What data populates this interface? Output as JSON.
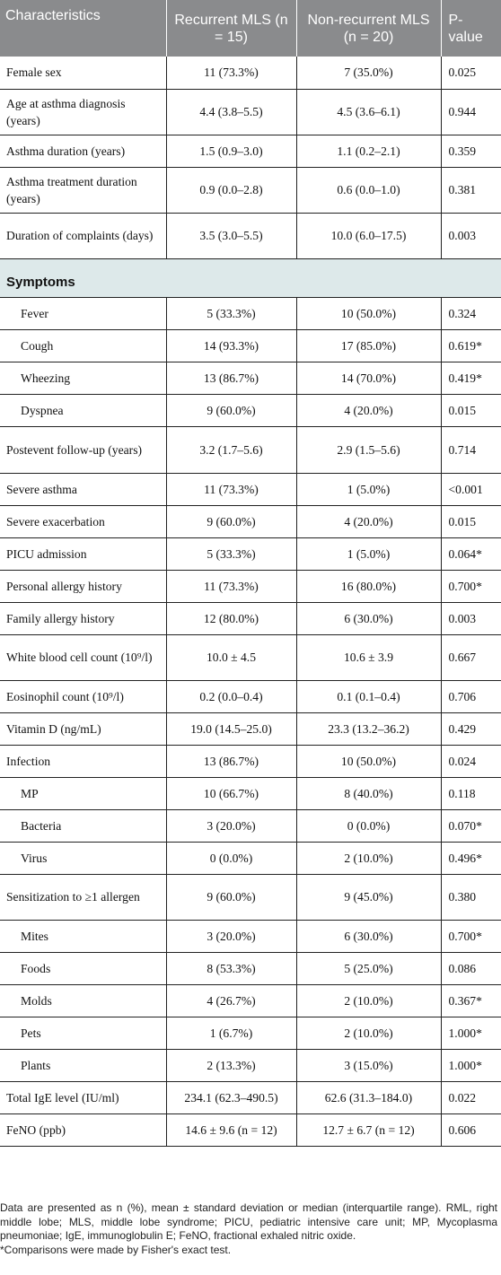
{
  "header": {
    "characteristics": "Characteristics",
    "recurrent": "Recurrent MLS (n = 15)",
    "nonrecurrent": "Non-recurrent MLS (n = 20)",
    "pvalue": "P-value"
  },
  "rows": [
    {
      "label": "Female sex",
      "recurrent": "11 (73.3%)",
      "nonrecurrent": "7 (35.0%)",
      "p": "0.025"
    },
    {
      "label": "Age at asthma diagnosis (years)",
      "recurrent": "4.4 (3.8–5.5)",
      "nonrecurrent": "4.5 (3.6–6.1)",
      "p": "0.944"
    },
    {
      "label": "Asthma duration (years)",
      "recurrent": "1.5 (0.9–3.0)",
      "nonrecurrent": "1.1 (0.2–2.1)",
      "p": "0.359"
    },
    {
      "label": "Asthma treatment duration (years)",
      "recurrent": "0.9 (0.0–2.8)",
      "nonrecurrent": "0.6 (0.0–1.0)",
      "p": "0.381"
    },
    {
      "label": "Duration of complaints (days)",
      "recurrent": "3.5 (3.0–5.5)",
      "nonrecurrent": "10.0 (6.0–17.5)",
      "p": "0.003"
    },
    {
      "label": "Symptoms"
    },
    {
      "label": "Fever",
      "recurrent": "5 (33.3%)",
      "nonrecurrent": "10 (50.0%)",
      "p": "0.324"
    },
    {
      "label": "Cough",
      "recurrent": "14 (93.3%)",
      "nonrecurrent": "17 (85.0%)",
      "p": "0.619*"
    },
    {
      "label": "Wheezing",
      "recurrent": "13 (86.7%)",
      "nonrecurrent": "14 (70.0%)",
      "p": "0.419*"
    },
    {
      "label": "Dyspnea",
      "recurrent": "9 (60.0%)",
      "nonrecurrent": "4 (20.0%)",
      "p": "0.015"
    },
    {
      "label": "Postevent follow-up (years)",
      "recurrent": "3.2 (1.7–5.6)",
      "nonrecurrent": "2.9 (1.5–5.6)",
      "p": "0.714"
    },
    {
      "label": "Severe asthma",
      "recurrent": "11 (73.3%)",
      "nonrecurrent": "1 (5.0%)",
      "p": "<0.001"
    },
    {
      "label": "Severe exacerbation",
      "recurrent": "9 (60.0%)",
      "nonrecurrent": "4 (20.0%)",
      "p": "0.015"
    },
    {
      "label": "PICU admission",
      "recurrent": "5 (33.3%)",
      "nonrecurrent": "1 (5.0%)",
      "p": "0.064*"
    },
    {
      "label": "Personal allergy history",
      "recurrent": "11 (73.3%)",
      "nonrecurrent": "16 (80.0%)",
      "p": "0.700*"
    },
    {
      "label": "Family allergy history",
      "recurrent": "12 (80.0%)",
      "nonrecurrent": "6 (30.0%)",
      "p": "0.003"
    },
    {
      "label": "White blood cell count (10⁹/l)",
      "recurrent": "10.0 ± 4.5",
      "nonrecurrent": "10.6 ± 3.9",
      "p": "0.667"
    },
    {
      "label": "Eosinophil count (10⁹/l)",
      "recurrent": "0.2 (0.0–0.4)",
      "nonrecurrent": "0.1 (0.1–0.4)",
      "p": "0.706"
    },
    {
      "label": "Vitamin D (ng/mL)",
      "recurrent": "19.0 (14.5–25.0)",
      "nonrecurrent": "23.3 (13.2–36.2)",
      "p": "0.429"
    },
    {
      "label": "Infection",
      "recurrent": "13 (86.7%)",
      "nonrecurrent": "10 (50.0%)",
      "p": "0.024"
    },
    {
      "label": "MP",
      "recurrent": "10 (66.7%)",
      "nonrecurrent": "8 (40.0%)",
      "p": "0.118"
    },
    {
      "label": "Bacteria",
      "recurrent": "3 (20.0%)",
      "nonrecurrent": "0 (0.0%)",
      "p": "0.070*"
    },
    {
      "label": "Virus",
      "recurrent": "0 (0.0%)",
      "nonrecurrent": "2 (10.0%)",
      "p": "0.496*"
    },
    {
      "label": "Sensitization to ≥1 allergen",
      "recurrent": "9 (60.0%)",
      "nonrecurrent": "9 (45.0%)",
      "p": "0.380"
    },
    {
      "label": "Mites",
      "recurrent": "3 (20.0%)",
      "nonrecurrent": "6 (30.0%)",
      "p": "0.700*"
    },
    {
      "label": "Foods",
      "recurrent": "8 (53.3%)",
      "nonrecurrent": "5 (25.0%)",
      "p": "0.086"
    },
    {
      "label": "Molds",
      "recurrent": "4 (26.7%)",
      "nonrecurrent": "2 (10.0%)",
      "p": "0.367*"
    },
    {
      "label": "Pets",
      "recurrent": "1 (6.7%)",
      "nonrecurrent": "2 (10.0%)",
      "p": "1.000*"
    },
    {
      "label": "Plants",
      "recurrent": "2 (13.3%)",
      "nonrecurrent": "3 (15.0%)",
      "p": "1.000*"
    },
    {
      "label": "Total IgE level (IU/ml)",
      "recurrent": "234.1 (62.3–490.5)",
      "nonrecurrent": "62.6 (31.3–184.0)",
      "p": "0.022"
    },
    {
      "label": "FeNO (ppb)",
      "recurrent": "14.6 ± 9.6 (n = 12)",
      "nonrecurrent": "12.7 ± 6.7 (n = 12)",
      "p": "0.606"
    }
  ],
  "footnotes": {
    "note": "Data are presented as n (%), mean ± standard deviation or median (interquartile range). RML, right middle lobe; MLS, middle lobe syndrome; PICU, pediatric intensive care unit; MP, Mycoplasma pneumoniae; IgE, immunoglobulin E; FeNO, fractional exhaled nitric oxide.",
    "fisher": "*Comparisons were made by Fisher's exact test."
  }
}
